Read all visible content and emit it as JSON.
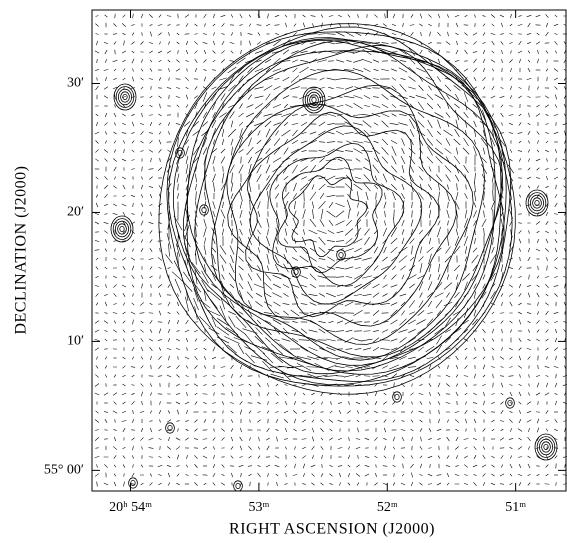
{
  "chart_data": {
    "type": "contour",
    "x_label": "RIGHT ASCENSION (J2000)",
    "y_label": "DECLINATION (J2000)",
    "xlim": [
      54.3,
      50.6
    ],
    "ylim": [
      -1.6,
      35.7
    ],
    "xticks": [
      {
        "value": 54,
        "label": "20ʰ 54ᵐ"
      },
      {
        "value": 53,
        "label": "53ᵐ"
      },
      {
        "value": 52,
        "label": "52ᵐ"
      },
      {
        "value": 51,
        "label": "51ᵐ"
      }
    ],
    "yticks": [
      {
        "value": 0,
        "label": "55° 00′"
      },
      {
        "value": 10,
        "label": "10′"
      },
      {
        "value": 20,
        "label": "20′"
      },
      {
        "value": 30,
        "label": "30′"
      }
    ]
  }
}
